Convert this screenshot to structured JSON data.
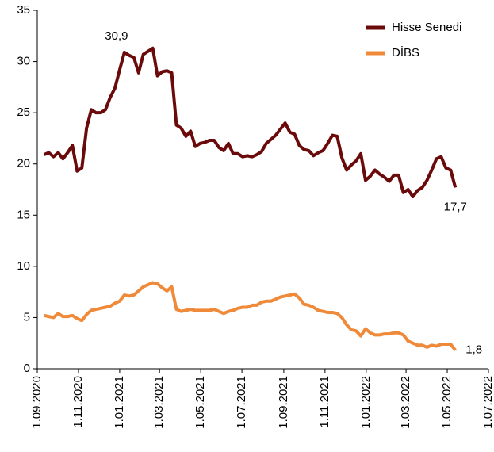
{
  "chart_data": {
    "type": "line",
    "x": [
      "2020-09-11",
      "2020-09-18",
      "2020-09-25",
      "2020-10-02",
      "2020-10-09",
      "2020-10-16",
      "2020-10-23",
      "2020-10-30",
      "2020-11-06",
      "2020-11-13",
      "2020-11-20",
      "2020-11-27",
      "2020-12-04",
      "2020-12-11",
      "2020-12-18",
      "2020-12-25",
      "2021-01-01",
      "2021-01-08",
      "2021-01-15",
      "2021-01-22",
      "2021-01-29",
      "2021-02-05",
      "2021-02-12",
      "2021-02-19",
      "2021-02-26",
      "2021-03-05",
      "2021-03-12",
      "2021-03-19",
      "2021-03-26",
      "2021-04-02",
      "2021-04-09",
      "2021-04-16",
      "2021-04-23",
      "2021-04-30",
      "2021-05-07",
      "2021-05-14",
      "2021-05-21",
      "2021-05-28",
      "2021-06-04",
      "2021-06-11",
      "2021-06-18",
      "2021-06-25",
      "2021-07-02",
      "2021-07-09",
      "2021-07-16",
      "2021-07-23",
      "2021-07-30",
      "2021-08-06",
      "2021-08-13",
      "2021-08-20",
      "2021-08-27",
      "2021-09-03",
      "2021-09-10",
      "2021-09-17",
      "2021-09-24",
      "2021-10-01",
      "2021-10-08",
      "2021-10-15",
      "2021-10-22",
      "2021-10-29",
      "2021-11-05",
      "2021-11-12",
      "2021-11-19",
      "2021-11-26",
      "2021-12-03",
      "2021-12-10",
      "2021-12-17",
      "2021-12-24",
      "2021-12-31",
      "2022-01-07",
      "2022-01-14",
      "2022-01-21",
      "2022-01-28",
      "2022-02-04",
      "2022-02-11",
      "2022-02-18",
      "2022-02-25",
      "2022-03-04",
      "2022-03-11",
      "2022-03-18",
      "2022-03-25",
      "2022-04-01",
      "2022-04-08",
      "2022-04-15",
      "2022-04-22",
      "2022-04-29",
      "2022-05-06",
      "2022-05-13"
    ],
    "series": [
      {
        "name": "Hisse Senedi",
        "color": "#6b0a0a",
        "values": [
          20.9,
          21.1,
          20.7,
          21.1,
          20.5,
          21.1,
          21.8,
          19.3,
          19.6,
          23.5,
          25.3,
          25.0,
          25.0,
          25.3,
          26.5,
          27.4,
          29.2,
          30.9,
          30.6,
          30.4,
          28.9,
          30.7,
          31.0,
          31.3,
          28.6,
          29.0,
          29.1,
          28.9,
          23.8,
          23.5,
          22.7,
          23.2,
          21.7,
          22.0,
          22.1,
          22.3,
          22.3,
          21.6,
          21.3,
          22.0,
          21.0,
          21.0,
          20.7,
          20.8,
          20.7,
          20.9,
          21.2,
          22.0,
          22.4,
          22.8,
          23.4,
          24.0,
          23.1,
          22.9,
          21.8,
          21.4,
          21.3,
          20.8,
          21.1,
          21.3,
          22.0,
          22.8,
          22.7,
          20.6,
          19.4,
          19.9,
          20.3,
          21.0,
          18.4,
          18.8,
          19.4,
          19.0,
          18.7,
          18.3,
          18.9,
          18.9,
          17.2,
          17.5,
          16.8,
          17.4,
          17.7,
          18.4,
          19.4,
          20.5,
          20.7,
          19.6,
          19.4,
          17.7
        ],
        "value_labels": [
          null,
          null,
          null,
          null,
          null,
          null,
          null,
          null,
          null,
          null,
          null,
          null,
          null,
          null,
          null,
          null,
          null,
          "30,9",
          null,
          null,
          null,
          null,
          null,
          null,
          null,
          null,
          null,
          null,
          null,
          null,
          null,
          null,
          null,
          null,
          null,
          null,
          null,
          null,
          null,
          null,
          null,
          null,
          null,
          null,
          null,
          null,
          null,
          null,
          null,
          null,
          null,
          null,
          null,
          null,
          null,
          null,
          null,
          null,
          null,
          null,
          null,
          null,
          null,
          null,
          null,
          null,
          null,
          null,
          null,
          null,
          null,
          null,
          null,
          null,
          null,
          null,
          null,
          null,
          null,
          null,
          null,
          null,
          null,
          null,
          null,
          null,
          null,
          "17,7"
        ]
      },
      {
        "name": "DİBS",
        "color": "#ee8a3a",
        "values": [
          5.2,
          5.1,
          5.0,
          5.4,
          5.1,
          5.1,
          5.2,
          4.9,
          4.7,
          5.3,
          5.7,
          5.8,
          5.9,
          6.0,
          6.1,
          6.4,
          6.6,
          7.2,
          7.1,
          7.2,
          7.6,
          8.0,
          8.2,
          8.4,
          8.3,
          7.9,
          7.6,
          8.0,
          5.8,
          5.6,
          5.7,
          5.8,
          5.7,
          5.7,
          5.7,
          5.7,
          5.8,
          5.6,
          5.4,
          5.6,
          5.7,
          5.9,
          6.0,
          6.0,
          6.2,
          6.2,
          6.5,
          6.6,
          6.6,
          6.8,
          7.0,
          7.1,
          7.2,
          7.3,
          6.9,
          6.3,
          6.2,
          6.0,
          5.7,
          5.6,
          5.5,
          5.5,
          5.4,
          5.0,
          4.3,
          3.8,
          3.7,
          3.2,
          3.9,
          3.5,
          3.3,
          3.3,
          3.4,
          3.4,
          3.5,
          3.5,
          3.3,
          2.7,
          2.5,
          2.3,
          2.3,
          2.1,
          2.3,
          2.2,
          2.4,
          2.4,
          2.4,
          1.8
        ],
        "value_labels": [
          null,
          null,
          null,
          null,
          null,
          null,
          null,
          null,
          null,
          null,
          null,
          null,
          null,
          null,
          null,
          null,
          null,
          null,
          null,
          null,
          null,
          null,
          null,
          null,
          null,
          null,
          null,
          null,
          null,
          null,
          null,
          null,
          null,
          null,
          null,
          null,
          null,
          null,
          null,
          null,
          null,
          null,
          null,
          null,
          null,
          null,
          null,
          null,
          null,
          null,
          null,
          null,
          null,
          null,
          null,
          null,
          null,
          null,
          null,
          null,
          null,
          null,
          null,
          null,
          null,
          null,
          null,
          null,
          null,
          null,
          null,
          null,
          null,
          null,
          null,
          null,
          null,
          null,
          null,
          null,
          null,
          null,
          null,
          null,
          null,
          null,
          null,
          "1,8"
        ]
      }
    ],
    "xlim": [
      "2020-09-01",
      "2022-07-01"
    ],
    "xticks": [
      {
        "value": "2020-09-01",
        "label": "1.09.2020"
      },
      {
        "value": "2020-11-01",
        "label": "1.11.2020"
      },
      {
        "value": "2021-01-01",
        "label": "1.01.2021"
      },
      {
        "value": "2021-03-01",
        "label": "1.03.2021"
      },
      {
        "value": "2021-05-01",
        "label": "1.05.2021"
      },
      {
        "value": "2021-07-01",
        "label": "1.07.2021"
      },
      {
        "value": "2021-09-01",
        "label": "1.09.2021"
      },
      {
        "value": "2021-11-01",
        "label": "1.11.2021"
      },
      {
        "value": "2022-01-01",
        "label": "1.01.2022"
      },
      {
        "value": "2022-03-01",
        "label": "1.03.2022"
      },
      {
        "value": "2022-05-01",
        "label": "1.05.2022"
      },
      {
        "value": "2022-07-01",
        "label": "1.07.2022"
      }
    ],
    "ylim": [
      0,
      35
    ],
    "yticks": [
      0,
      5,
      10,
      15,
      20,
      25,
      30,
      35
    ],
    "grid": false,
    "legend": "top-right"
  }
}
